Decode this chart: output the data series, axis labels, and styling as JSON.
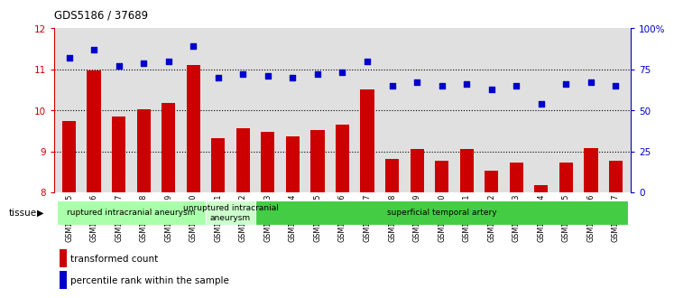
{
  "title": "GDS5186 / 37689",
  "samples": [
    "GSM1306885",
    "GSM1306886",
    "GSM1306887",
    "GSM1306888",
    "GSM1306889",
    "GSM1306890",
    "GSM1306891",
    "GSM1306892",
    "GSM1306893",
    "GSM1306894",
    "GSM1306895",
    "GSM1306896",
    "GSM1306897",
    "GSM1306898",
    "GSM1306899",
    "GSM1306900",
    "GSM1306901",
    "GSM1306902",
    "GSM1306903",
    "GSM1306904",
    "GSM1306905",
    "GSM1306906",
    "GSM1306907"
  ],
  "bar_values": [
    9.75,
    10.97,
    9.85,
    10.02,
    10.18,
    11.1,
    9.32,
    9.57,
    9.48,
    9.37,
    9.52,
    9.65,
    10.5,
    8.82,
    9.06,
    8.78,
    9.05,
    8.52,
    8.72,
    8.18,
    8.72,
    9.07,
    8.78
  ],
  "dot_values": [
    82,
    87,
    77,
    79,
    80,
    89,
    70,
    72,
    71,
    70,
    72,
    73,
    80,
    65,
    67,
    65,
    66,
    63,
    65,
    54,
    66,
    67,
    65
  ],
  "bar_color": "#cc0000",
  "dot_color": "#0000cc",
  "ylim_left": [
    8,
    12
  ],
  "ylim_right": [
    0,
    100
  ],
  "yticks_left": [
    8,
    9,
    10,
    11,
    12
  ],
  "yticks_right": [
    0,
    25,
    50,
    75,
    100
  ],
  "ytick_labels_right": [
    "0",
    "25",
    "50",
    "75",
    "100%"
  ],
  "group_defs": [
    {
      "start": 0,
      "end": 5,
      "color": "#aaffaa",
      "label": "ruptured intracranial aneurysm"
    },
    {
      "start": 6,
      "end": 7,
      "color": "#ccffcc",
      "label": "unruptured intracranial\naneurysm"
    },
    {
      "start": 8,
      "end": 22,
      "color": "#44cc44",
      "label": "superficial temporal artery"
    }
  ],
  "tissue_label": "tissue",
  "legend_bar_label": "transformed count",
  "legend_dot_label": "percentile rank within the sample",
  "plot_bg_color": "#e0e0e0",
  "base_value": 8,
  "grid_yticks": [
    9,
    10,
    11
  ]
}
